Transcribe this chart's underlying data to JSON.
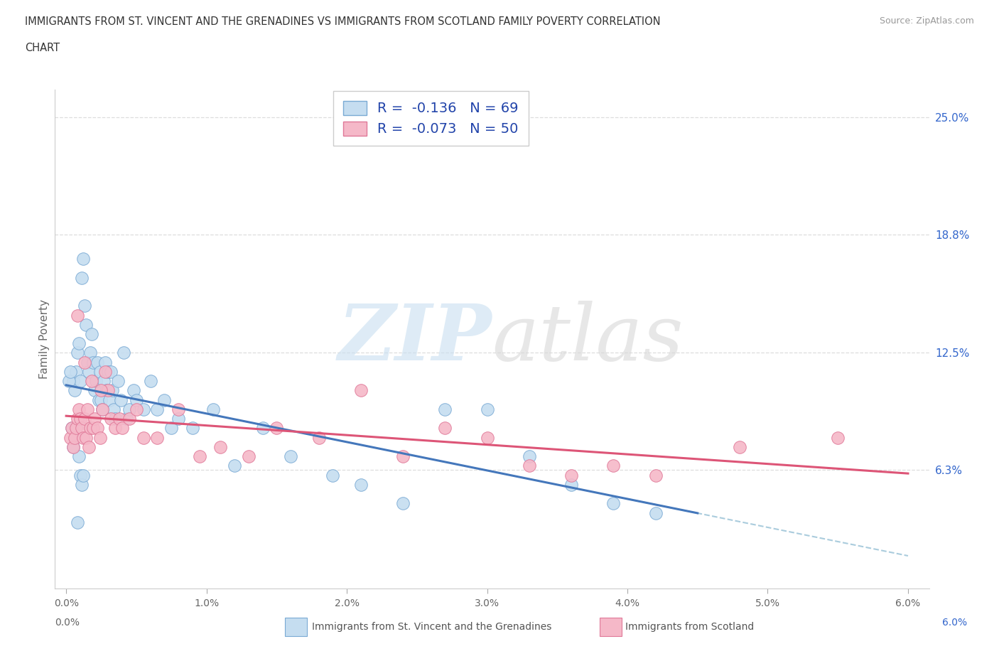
{
  "title_line1": "IMMIGRANTS FROM ST. VINCENT AND THE GRENADINES VS IMMIGRANTS FROM SCOTLAND FAMILY POVERTY CORRELATION",
  "title_line2": "CHART",
  "source_text": "Source: ZipAtlas.com",
  "ylabel": "Family Poverty",
  "xlim": [
    0.0,
    6.0
  ],
  "ylim": [
    0.0,
    26.5
  ],
  "xtick_labels": [
    "0.0%",
    "1.0%",
    "2.0%",
    "3.0%",
    "4.0%",
    "5.0%",
    "6.0%"
  ],
  "xtick_values": [
    0.0,
    1.0,
    2.0,
    3.0,
    4.0,
    5.0,
    6.0
  ],
  "ytick_right_labels": [
    "6.3%",
    "12.5%",
    "18.8%",
    "25.0%"
  ],
  "ytick_right_values": [
    6.3,
    12.5,
    18.8,
    25.0
  ],
  "color_blue": "#c5ddf0",
  "color_pink": "#f5b8c8",
  "edge_blue": "#7aaad4",
  "edge_pink": "#e07898",
  "line_blue_color": "#4477bb",
  "line_pink_color": "#dd5577",
  "line_dashed_color": "#aaccdd",
  "legend_text_color": "#2244aa",
  "blue_x": [
    0.05,
    0.06,
    0.07,
    0.08,
    0.09,
    0.1,
    0.11,
    0.12,
    0.13,
    0.14,
    0.15,
    0.16,
    0.17,
    0.18,
    0.19,
    0.2,
    0.21,
    0.22,
    0.23,
    0.24,
    0.25,
    0.26,
    0.27,
    0.28,
    0.29,
    0.3,
    0.31,
    0.32,
    0.33,
    0.34,
    0.35,
    0.37,
    0.39,
    0.41,
    0.43,
    0.45,
    0.48,
    0.5,
    0.55,
    0.6,
    0.65,
    0.7,
    0.75,
    0.8,
    0.9,
    1.05,
    1.2,
    1.4,
    1.6,
    1.9,
    2.1,
    2.4,
    2.7,
    3.0,
    3.3,
    3.6,
    3.9,
    4.2,
    0.02,
    0.03,
    0.04,
    0.05,
    0.06,
    0.07,
    0.08,
    0.09,
    0.1,
    0.11,
    0.12
  ],
  "blue_y": [
    11.0,
    10.5,
    11.5,
    12.5,
    13.0,
    11.0,
    16.5,
    17.5,
    15.0,
    14.0,
    12.0,
    11.5,
    12.5,
    13.5,
    12.0,
    10.5,
    11.0,
    12.0,
    10.0,
    11.5,
    10.0,
    9.5,
    11.0,
    12.0,
    10.5,
    11.5,
    10.0,
    11.5,
    10.5,
    9.5,
    9.0,
    11.0,
    10.0,
    12.5,
    9.0,
    9.5,
    10.5,
    10.0,
    9.5,
    11.0,
    9.5,
    10.0,
    8.5,
    9.0,
    8.5,
    9.5,
    6.5,
    8.5,
    7.0,
    6.0,
    5.5,
    4.5,
    9.5,
    9.5,
    7.0,
    5.5,
    4.5,
    4.0,
    11.0,
    11.5,
    8.5,
    7.5,
    8.0,
    8.5,
    3.5,
    7.0,
    6.0,
    5.5,
    6.0
  ],
  "pink_x": [
    0.03,
    0.04,
    0.05,
    0.06,
    0.07,
    0.08,
    0.09,
    0.1,
    0.11,
    0.12,
    0.13,
    0.14,
    0.15,
    0.16,
    0.17,
    0.18,
    0.19,
    0.2,
    0.22,
    0.24,
    0.26,
    0.28,
    0.3,
    0.32,
    0.35,
    0.38,
    0.4,
    0.45,
    0.5,
    0.55,
    0.65,
    0.8,
    0.95,
    1.1,
    1.3,
    1.5,
    1.8,
    2.1,
    2.4,
    2.7,
    3.0,
    3.3,
    3.6,
    3.9,
    4.2,
    4.8,
    5.5,
    0.08,
    0.13,
    0.25
  ],
  "pink_y": [
    8.0,
    8.5,
    7.5,
    8.0,
    8.5,
    9.0,
    9.5,
    9.0,
    8.5,
    8.0,
    9.0,
    8.0,
    9.5,
    7.5,
    8.5,
    11.0,
    8.5,
    9.0,
    8.5,
    8.0,
    9.5,
    11.5,
    10.5,
    9.0,
    8.5,
    9.0,
    8.5,
    9.0,
    9.5,
    8.0,
    8.0,
    9.5,
    7.0,
    7.5,
    7.0,
    8.5,
    8.0,
    10.5,
    7.0,
    8.5,
    8.0,
    6.5,
    6.0,
    6.5,
    6.0,
    7.5,
    8.0,
    14.5,
    12.0,
    10.5
  ]
}
